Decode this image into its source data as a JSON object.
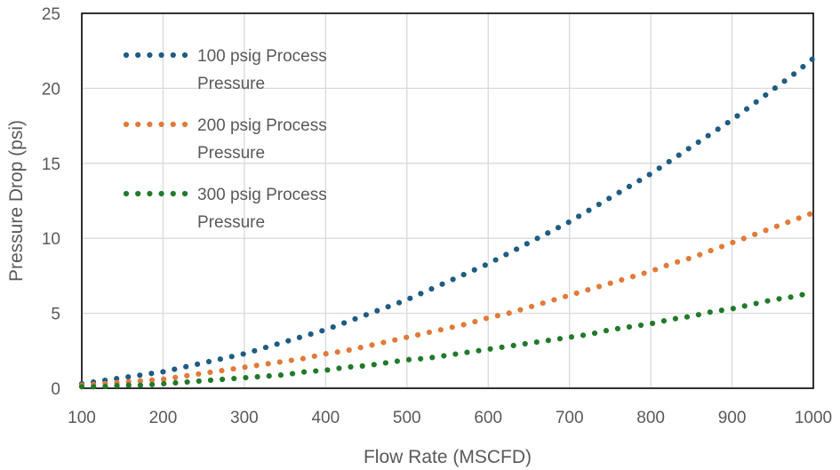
{
  "chart_data": {
    "type": "scatter",
    "title": "",
    "xlabel": "Flow Rate (MSCFD)",
    "ylabel": "Pressure Drop  (psi)",
    "xlim": [
      100,
      1000
    ],
    "ylim": [
      0,
      25
    ],
    "xticks": [
      100,
      200,
      300,
      400,
      500,
      600,
      700,
      800,
      900,
      1000
    ],
    "yticks": [
      0,
      5,
      10,
      15,
      20,
      25
    ],
    "grid": true,
    "legend_position": "top-left",
    "x": [
      100,
      125,
      150,
      175,
      200,
      225,
      250,
      275,
      300,
      325,
      350,
      375,
      400,
      425,
      450,
      475,
      500,
      525,
      550,
      575,
      600,
      625,
      650,
      675,
      700,
      725,
      750,
      775,
      800,
      825,
      850,
      875,
      900,
      925,
      950,
      975,
      1000
    ],
    "series": [
      {
        "name": "100 psig  Process Pressure",
        "name_lines": [
          "100 psig  Process",
          "Pressure"
        ],
        "color": "#1f5c82",
        "values": [
          0.3,
          0.5,
          0.7,
          0.9,
          1.1,
          1.4,
          1.7,
          2.0,
          2.3,
          2.7,
          3.1,
          3.5,
          3.9,
          4.4,
          4.9,
          5.4,
          5.9,
          6.5,
          7.1,
          7.7,
          8.3,
          9.0,
          9.7,
          10.4,
          11.1,
          11.9,
          12.7,
          13.5,
          14.3,
          15.2,
          16.1,
          17.0,
          17.9,
          18.9,
          19.9,
          20.9,
          22.0
        ]
      },
      {
        "name": "200 psig Process Pressure",
        "name_lines": [
          "200 psig Process",
          "Pressure"
        ],
        "color": "#e07b3a",
        "values": [
          0.2,
          0.3,
          0.4,
          0.5,
          0.6,
          0.8,
          1.0,
          1.2,
          1.4,
          1.6,
          1.8,
          2.0,
          2.3,
          2.5,
          2.8,
          3.1,
          3.4,
          3.7,
          4.0,
          4.3,
          4.7,
          5.0,
          5.4,
          5.8,
          6.2,
          6.6,
          7.0,
          7.4,
          7.8,
          8.3,
          8.7,
          9.2,
          9.7,
          10.2,
          10.7,
          11.2,
          11.7
        ]
      },
      {
        "name": "300 psig Process Pressure",
        "name_lines": [
          "300 psig Process",
          "Pressure"
        ],
        "color": "#217a2c",
        "values": [
          0.1,
          0.1,
          0.2,
          0.2,
          0.3,
          0.4,
          0.5,
          0.6,
          0.7,
          0.8,
          0.9,
          1.1,
          1.2,
          1.4,
          1.5,
          1.7,
          1.9,
          2.0,
          2.2,
          2.4,
          2.6,
          2.8,
          3.0,
          3.2,
          3.4,
          3.6,
          3.9,
          4.1,
          4.3,
          4.6,
          4.8,
          5.1,
          5.3,
          5.6,
          5.9,
          6.1,
          6.4
        ]
      }
    ]
  }
}
